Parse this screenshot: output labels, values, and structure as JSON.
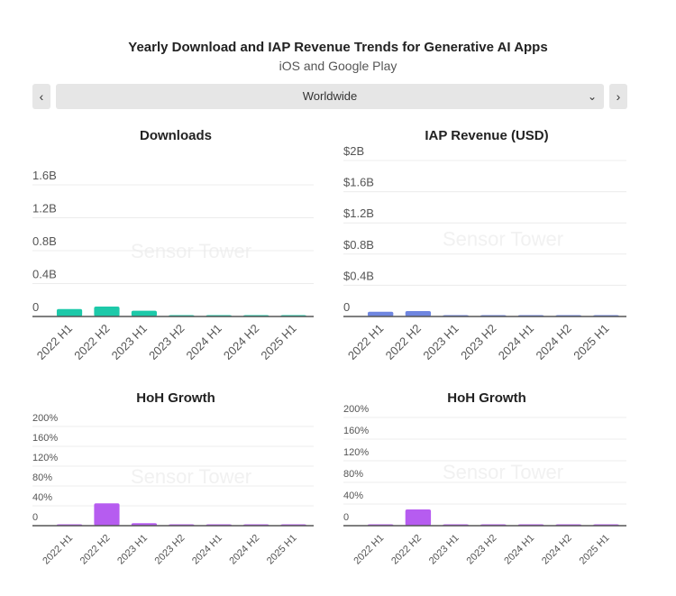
{
  "header": {
    "title": "Yearly Download and IAP Revenue Trends for Generative AI Apps",
    "subtitle": "iOS and Google Play"
  },
  "region_selector": {
    "value": "Worldwide",
    "prev_icon": "chevron-left-icon",
    "next_icon": "chevron-right-icon",
    "dropdown_icon": "chevron-down-icon"
  },
  "watermark": "Sensor Tower",
  "chart_data": [
    {
      "id": "downloads",
      "type": "bar",
      "title": "Downloads",
      "categories": [
        "2022 H1",
        "2022 H2",
        "2023 H1",
        "2023 H2",
        "2024 H1",
        "2024 H2",
        "2025 H1"
      ],
      "values": [
        0.09,
        0.12,
        0.07,
        0.01,
        0.01,
        0.01,
        0.01
      ],
      "unit": "B",
      "ylim": [
        0,
        1.6
      ],
      "ticks": [
        0,
        0.4,
        0.8,
        1.2,
        1.6
      ],
      "tick_labels": [
        "0",
        "0.4B",
        "0.8B",
        "1.2B",
        "1.6B"
      ],
      "color": "#1dc9a9",
      "grid": true
    },
    {
      "id": "revenue",
      "type": "bar",
      "title": "IAP Revenue (USD)",
      "categories": [
        "2022 H1",
        "2022 H2",
        "2023 H1",
        "2023 H2",
        "2024 H1",
        "2024 H2",
        "2025 H1"
      ],
      "values": [
        0.06,
        0.07,
        0.01,
        0.01,
        0.01,
        0.01,
        0.01
      ],
      "unit": "B USD",
      "ylim": [
        0,
        2
      ],
      "ticks": [
        0,
        0.4,
        0.8,
        1.2,
        1.6,
        2
      ],
      "tick_labels": [
        "0",
        "$0.4B",
        "$0.8B",
        "$1.2B",
        "$1.6B",
        "$2B"
      ],
      "color": "#6f86e0",
      "grid": true
    },
    {
      "id": "hoh-downloads",
      "type": "bar",
      "title": "HoH Growth",
      "categories": [
        "2022 H1",
        "2022 H2",
        "2023 H1",
        "2023 H2",
        "2024 H1",
        "2024 H2",
        "2025 H1"
      ],
      "values": [
        0,
        45,
        5,
        0,
        0,
        0,
        0
      ],
      "unit": "%",
      "ylim": [
        0,
        200
      ],
      "ticks": [
        0,
        40,
        80,
        120,
        160,
        200
      ],
      "tick_labels": [
        "0",
        "40%",
        "80%",
        "120%",
        "160%",
        "200%"
      ],
      "color": "#b65cf0",
      "grid": true
    },
    {
      "id": "hoh-revenue",
      "type": "bar",
      "title": "HoH Growth",
      "categories": [
        "2022 H1",
        "2022 H2",
        "2023 H1",
        "2023 H2",
        "2024 H1",
        "2024 H2",
        "2025 H1"
      ],
      "values": [
        0,
        30,
        1,
        0,
        0,
        0,
        0
      ],
      "unit": "%",
      "ylim": [
        0,
        200
      ],
      "ticks": [
        0,
        40,
        80,
        120,
        160,
        200
      ],
      "tick_labels": [
        "0",
        "40%",
        "80%",
        "120%",
        "160%",
        "200%"
      ],
      "color": "#b65cf0",
      "grid": true
    }
  ]
}
